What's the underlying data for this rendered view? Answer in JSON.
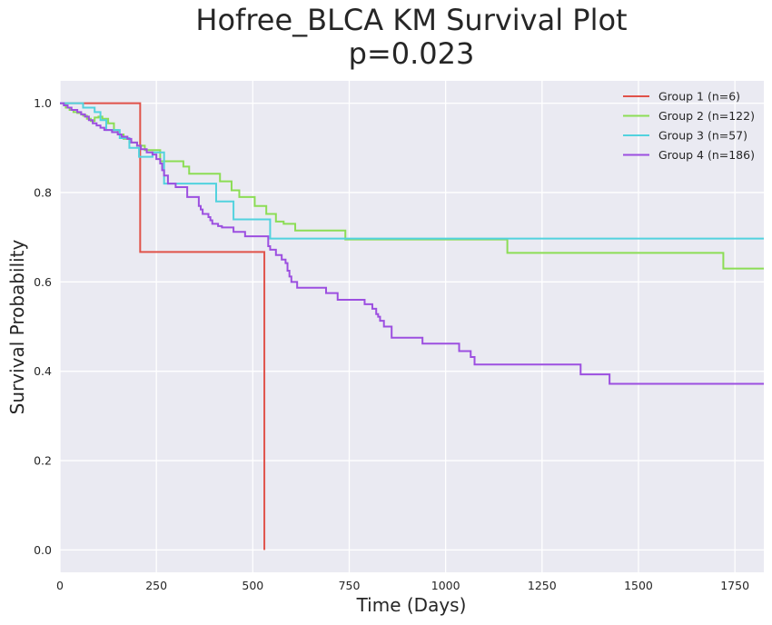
{
  "chart_data": {
    "type": "line",
    "title": "Hofree_BLCA KM Survival Plot",
    "subtitle": "p=0.023",
    "xlabel": "Time (Days)",
    "ylabel": "Survival Probability",
    "xlim": [
      0,
      1825
    ],
    "ylim": [
      -0.05,
      1.05
    ],
    "xticks": [
      0,
      250,
      500,
      750,
      1000,
      1250,
      1500,
      1750
    ],
    "xtick_labels": [
      "0",
      "250",
      "500",
      "750",
      "1000",
      "1250",
      "1500",
      "1750"
    ],
    "yticks": [
      0.0,
      0.2,
      0.4,
      0.6,
      0.8,
      1.0
    ],
    "ytick_labels": [
      "0.0",
      "0.2",
      "0.4",
      "0.6",
      "0.8",
      "1.0"
    ],
    "grid": true,
    "legend_position": "top-right",
    "background": "#eaeaf2",
    "step": true,
    "series": [
      {
        "name": "Group 1 (n=6)",
        "color": "#e0524a",
        "x": [
          0,
          208,
          208,
          530,
          530
        ],
        "y": [
          1.0,
          1.0,
          0.667,
          0.667,
          0.0
        ]
      },
      {
        "name": "Group 2 (n=122)",
        "color": "#8cdd55",
        "x": [
          0,
          15,
          25,
          35,
          45,
          55,
          60,
          70,
          80,
          90,
          100,
          110,
          125,
          140,
          150,
          165,
          180,
          200,
          220,
          260,
          320,
          335,
          415,
          445,
          465,
          505,
          535,
          560,
          580,
          610,
          740,
          1160,
          1720,
          1825
        ],
        "y": [
          1.0,
          0.99,
          0.985,
          0.98,
          0.978,
          0.975,
          0.972,
          0.965,
          0.96,
          0.968,
          0.97,
          0.965,
          0.955,
          0.94,
          0.93,
          0.92,
          0.912,
          0.905,
          0.895,
          0.87,
          0.858,
          0.842,
          0.825,
          0.805,
          0.79,
          0.77,
          0.752,
          0.735,
          0.73,
          0.715,
          0.695,
          0.665,
          0.63,
          0.63
        ],
        "style": "step"
      },
      {
        "name": "Group 3 (n=57)",
        "color": "#52d2de",
        "x": [
          0,
          60,
          90,
          105,
          120,
          155,
          180,
          205,
          240,
          270,
          405,
          450,
          545,
          1825
        ],
        "y": [
          1.0,
          0.99,
          0.98,
          0.962,
          0.94,
          0.922,
          0.9,
          0.88,
          0.89,
          0.82,
          0.78,
          0.74,
          0.697,
          0.697
        ],
        "style": "step"
      },
      {
        "name": "Group 4 (n=186)",
        "color": "#9c4fe0",
        "x": [
          0,
          10,
          20,
          30,
          45,
          55,
          65,
          75,
          85,
          95,
          105,
          115,
          135,
          150,
          160,
          175,
          185,
          200,
          210,
          225,
          240,
          250,
          260,
          265,
          270,
          280,
          300,
          330,
          360,
          365,
          370,
          385,
          390,
          395,
          410,
          420,
          450,
          480,
          540,
          545,
          560,
          575,
          585,
          590,
          595,
          600,
          615,
          690,
          720,
          790,
          810,
          820,
          825,
          830,
          840,
          860,
          940,
          1035,
          1065,
          1075,
          1095,
          1350,
          1425,
          1825
        ],
        "y": [
          1.0,
          0.995,
          0.99,
          0.985,
          0.98,
          0.975,
          0.97,
          0.962,
          0.955,
          0.95,
          0.945,
          0.94,
          0.935,
          0.93,
          0.925,
          0.92,
          0.912,
          0.905,
          0.897,
          0.89,
          0.885,
          0.875,
          0.865,
          0.85,
          0.838,
          0.82,
          0.812,
          0.79,
          0.77,
          0.762,
          0.752,
          0.745,
          0.738,
          0.73,
          0.725,
          0.722,
          0.712,
          0.702,
          0.68,
          0.672,
          0.66,
          0.65,
          0.642,
          0.625,
          0.612,
          0.6,
          0.587,
          0.575,
          0.56,
          0.55,
          0.54,
          0.528,
          0.522,
          0.513,
          0.5,
          0.475,
          0.462,
          0.445,
          0.432,
          0.415,
          0.415,
          0.393,
          0.372,
          0.372
        ],
        "style": "step"
      }
    ]
  }
}
